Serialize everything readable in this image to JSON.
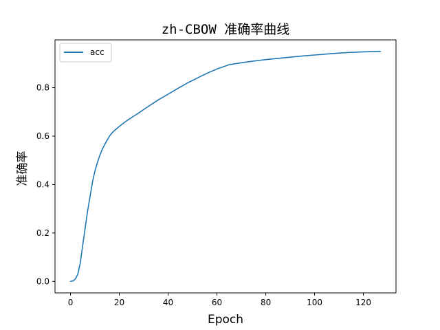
{
  "chart_data": {
    "type": "line",
    "title": "zh-CBOW 准确率曲线",
    "xlabel": "Epoch",
    "ylabel": "准确率",
    "xlim": [
      -6.35,
      133.35
    ],
    "ylim": [
      -0.0475,
      0.9975
    ],
    "xticks": [
      0,
      20,
      40,
      60,
      80,
      100,
      120
    ],
    "yticks": [
      0.0,
      0.2,
      0.4,
      0.6,
      0.8
    ],
    "ytick_labels": [
      "0.0",
      "0.2",
      "0.4",
      "0.6",
      "0.8"
    ],
    "grid": false,
    "legend_position": "upper-left",
    "series": [
      {
        "name": "acc",
        "color": "#1f77b4",
        "x": [
          0,
          1,
          2,
          3,
          4,
          5,
          6,
          7,
          8,
          9,
          10,
          11,
          12,
          13,
          14,
          15,
          16,
          17,
          18,
          20,
          22,
          24,
          26,
          28,
          30,
          33,
          36,
          40,
          44,
          48,
          52,
          56,
          60,
          65,
          70,
          75,
          80,
          85,
          90,
          95,
          100,
          105,
          110,
          115,
          120,
          127
        ],
        "y": [
          0.0,
          0.002,
          0.01,
          0.03,
          0.075,
          0.15,
          0.22,
          0.29,
          0.35,
          0.41,
          0.455,
          0.49,
          0.52,
          0.545,
          0.565,
          0.583,
          0.6,
          0.613,
          0.623,
          0.64,
          0.656,
          0.67,
          0.683,
          0.696,
          0.71,
          0.73,
          0.75,
          0.773,
          0.797,
          0.82,
          0.84,
          0.86,
          0.877,
          0.895,
          0.903,
          0.91,
          0.916,
          0.921,
          0.926,
          0.931,
          0.935,
          0.939,
          0.943,
          0.946,
          0.948,
          0.95
        ]
      }
    ]
  }
}
